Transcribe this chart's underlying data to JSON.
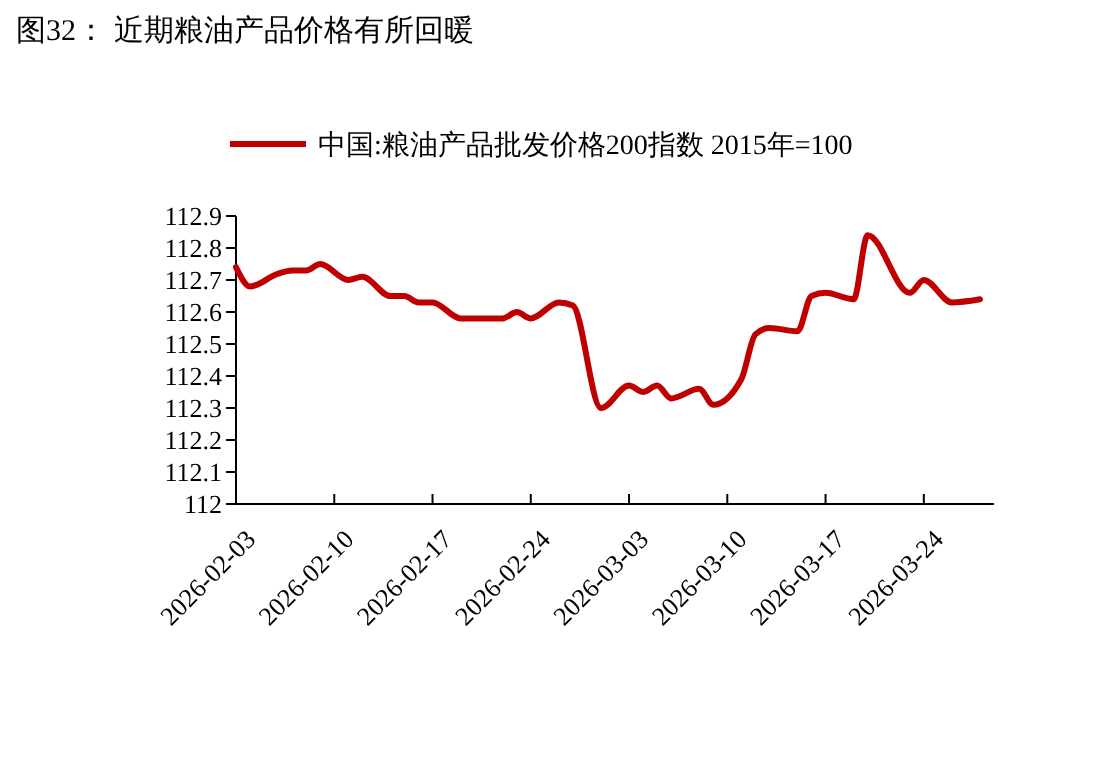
{
  "chart_data": {
    "type": "line",
    "title": "图32：  近期粮油产品价格有所回暖",
    "x": [
      "2026-02-03",
      "2026-02-04",
      "2026-02-06",
      "2026-02-07",
      "2026-02-08",
      "2026-02-09",
      "2026-02-11",
      "2026-02-12",
      "2026-02-14",
      "2026-02-15",
      "2026-02-16",
      "2026-02-17",
      "2026-02-19",
      "2026-02-22",
      "2026-02-23",
      "2026-02-24",
      "2026-02-26",
      "2026-02-27",
      "2026-03-01",
      "2026-03-03",
      "2026-03-04",
      "2026-03-05",
      "2026-03-06",
      "2026-03-08",
      "2026-03-09",
      "2026-03-11",
      "2026-03-12",
      "2026-03-13",
      "2026-03-15",
      "2026-03-16",
      "2026-03-17",
      "2026-03-19",
      "2026-03-20",
      "2026-03-23",
      "2026-03-24",
      "2026-03-26",
      "2026-03-28"
    ],
    "series": [
      {
        "name": "中国:粮油产品批发价格200指数 2015年=100",
        "color": "#c00000",
        "values": [
          112.74,
          112.68,
          112.72,
          112.73,
          112.73,
          112.75,
          112.7,
          112.71,
          112.65,
          112.65,
          112.63,
          112.63,
          112.58,
          112.58,
          112.6,
          112.58,
          112.63,
          112.62,
          112.3,
          112.37,
          112.35,
          112.37,
          112.33,
          112.36,
          112.31,
          112.39,
          112.53,
          112.55,
          112.54,
          112.65,
          112.66,
          112.64,
          112.84,
          112.66,
          112.7,
          112.63,
          112.64
        ]
      }
    ],
    "xlim": [
      "2026-02-03",
      "2026-03-29"
    ],
    "xticks": [
      "2026-02-03",
      "2026-02-10",
      "2026-02-17",
      "2026-02-24",
      "2026-03-03",
      "2026-03-10",
      "2026-03-17",
      "2026-03-24"
    ],
    "ylim": [
      112,
      112.9
    ],
    "yticks": [
      112,
      112.1,
      112.2,
      112.3,
      112.4,
      112.5,
      112.6,
      112.7,
      112.8,
      112.9
    ],
    "legend": "top",
    "marker": "none",
    "line_style": "solid",
    "grid": false
  }
}
